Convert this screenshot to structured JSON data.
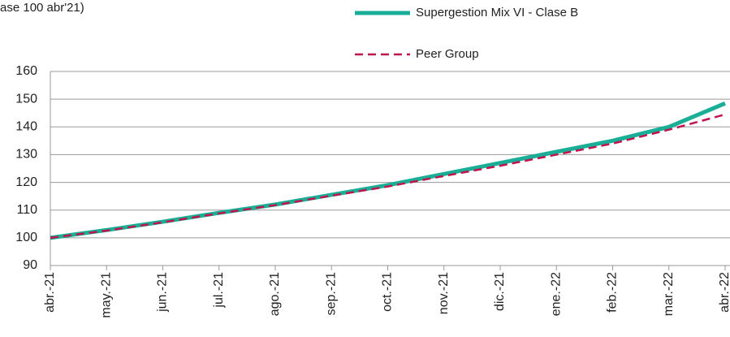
{
  "chart_data": {
    "type": "line",
    "title": "ase 100 abr'21)",
    "categories": [
      "abr.-21",
      "may.-21",
      "jun.-21",
      "jul.-21",
      "ago.-21",
      "sep.-21",
      "oct.-21",
      "nov.-21",
      "dic.-21",
      "ene.-22",
      "feb.-22",
      "mar.-22",
      "abr.-22"
    ],
    "series": [
      {
        "name": "Supergestion Mix VI - Clase B",
        "color": "#1aae96",
        "values": [
          100,
          102.8,
          105.8,
          109,
          112,
          115.5,
          119,
          123,
          127,
          131,
          135,
          140,
          148.5
        ]
      },
      {
        "name": "Peer Group",
        "color": "#c0144c",
        "values": [
          100,
          102.6,
          105.6,
          108.8,
          111.8,
          115.2,
          118.5,
          122.3,
          126,
          130,
          134,
          139,
          144.5
        ]
      }
    ],
    "ylim": [
      90,
      160
    ],
    "yticks": [
      90,
      100,
      110,
      120,
      130,
      140,
      150,
      160
    ],
    "grid": true
  }
}
